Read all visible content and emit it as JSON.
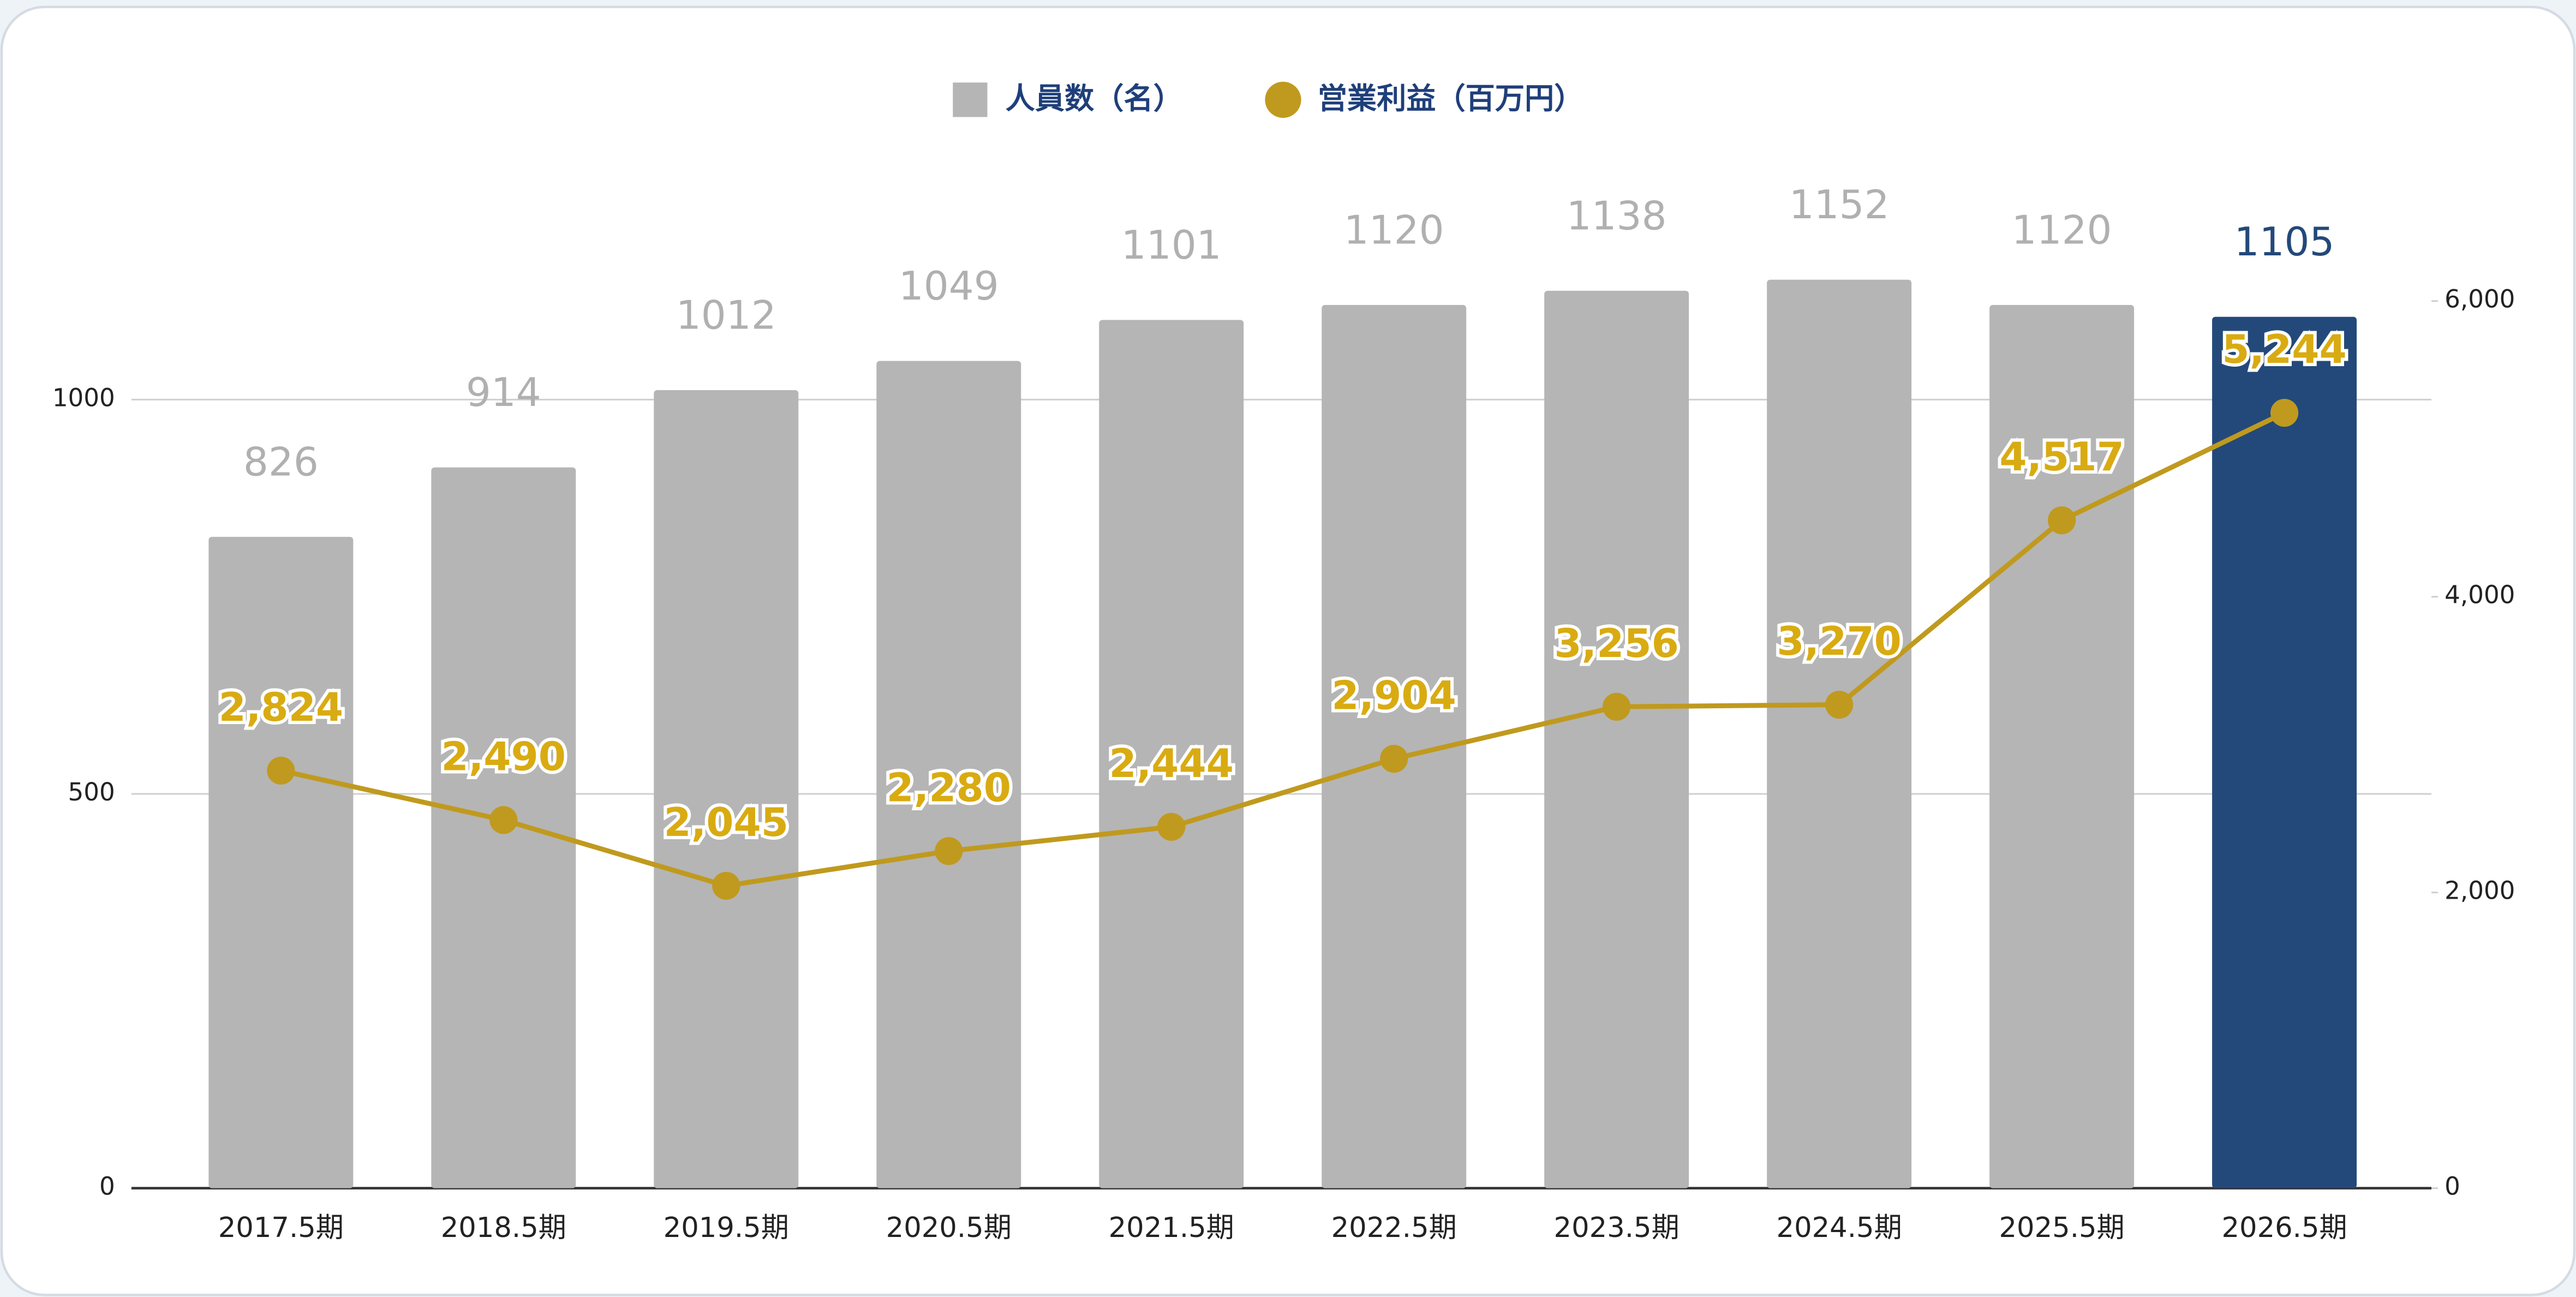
{
  "chart_data": {
    "type": "bar_line",
    "categories": [
      "2017.5期",
      "2018.5期",
      "2019.5期",
      "2020.5期",
      "2021.5期",
      "2022.5期",
      "2023.5期",
      "2024.5期",
      "2025.5期",
      "2026.5期"
    ],
    "series": [
      {
        "name": "人員数（名）",
        "type": "bar",
        "color": "#b5b5b5",
        "colors": [
          "#b5b5b5",
          "#b5b5b5",
          "#b5b5b5",
          "#b5b5b5",
          "#b5b5b5",
          "#b5b5b5",
          "#b5b5b5",
          "#b5b5b5",
          "#b5b5b5",
          "#23497a"
        ],
        "values": [
          826,
          914,
          1012,
          1049,
          1101,
          1120,
          1138,
          1152,
          1120,
          1105
        ]
      },
      {
        "name": "営業利益（百万円）",
        "type": "line",
        "axis": "y2",
        "color": "#c09a1e",
        "values": [
          2824,
          2490,
          2045,
          2280,
          2444,
          2904,
          3256,
          3270,
          4517,
          5244
        ],
        "value_labels": [
          "2,824",
          "2,490",
          "2,045",
          "2,280",
          "2,444",
          "2,904",
          "3,256",
          "3,270",
          "4,517",
          "5,244"
        ]
      }
    ],
    "ylim": [
      0,
      1200
    ],
    "yticks": [
      0,
      500,
      1000
    ],
    "y2lim": [
      0,
      6400
    ],
    "y2ticks": [
      0,
      {
        "value": 2000,
        "label": "2,000"
      },
      {
        "value": 4000,
        "label": "4,000"
      },
      {
        "value": 6000,
        "label": "6,000"
      }
    ],
    "grid": true,
    "legend": "top"
  }
}
